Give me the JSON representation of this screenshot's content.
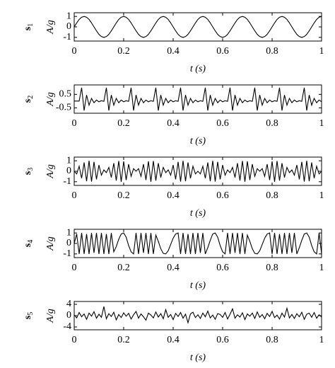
{
  "chart_data": [
    {
      "type": "line",
      "signal_label": "s",
      "signal_subscript": "1",
      "ylabel": "A/g",
      "xlabel": "t (s)",
      "color": "#000000",
      "xlim": [
        0,
        1
      ],
      "xticks": [
        0,
        0.2,
        0.4,
        0.6,
        0.8,
        1
      ],
      "ylim": [
        -1.35,
        1.35
      ],
      "yticks": [
        -1,
        0,
        1
      ],
      "x": [
        0,
        0.01,
        0.02,
        0.03,
        0.04,
        0.05,
        0.06,
        0.07,
        0.08,
        0.09,
        0.1,
        0.11,
        0.12,
        0.13,
        0.14,
        0.15,
        0.16,
        0.17,
        0.18,
        0.19,
        0.2,
        0.21,
        0.22,
        0.23,
        0.24,
        0.25,
        0.26,
        0.27,
        0.28,
        0.29,
        0.3,
        0.31,
        0.32,
        0.33,
        0.34,
        0.35,
        0.36,
        0.37,
        0.38,
        0.39,
        0.4,
        0.41,
        0.42,
        0.43,
        0.44,
        0.45,
        0.46,
        0.47,
        0.48,
        0.49,
        0.5,
        0.51,
        0.52,
        0.53,
        0.54,
        0.55,
        0.56,
        0.57,
        0.58,
        0.59,
        0.6,
        0.61,
        0.62,
        0.63,
        0.64,
        0.65,
        0.66,
        0.67,
        0.68,
        0.69,
        0.7,
        0.71,
        0.72,
        0.73,
        0.74,
        0.75,
        0.76,
        0.77,
        0.78,
        0.79,
        0.8,
        0.81,
        0.82,
        0.83,
        0.84,
        0.85,
        0.86,
        0.87,
        0.88,
        0.89,
        0.9,
        0.91,
        0.92,
        0.93,
        0.94,
        0.95,
        0.96,
        0.97,
        0.98,
        0.99,
        1
      ],
      "values": [
        0,
        0.38,
        0.71,
        0.92,
        1,
        0.92,
        0.71,
        0.38,
        0,
        -0.38,
        -0.71,
        -0.92,
        -1,
        -0.92,
        -0.71,
        -0.38,
        0,
        0.38,
        0.71,
        0.92,
        1,
        0.92,
        0.71,
        0.38,
        0,
        -0.38,
        -0.71,
        -0.92,
        -1,
        -0.92,
        -0.71,
        -0.38,
        0,
        0.38,
        0.71,
        0.92,
        1,
        0.92,
        0.71,
        0.38,
        0,
        -0.38,
        -0.71,
        -0.92,
        -1,
        -0.92,
        -0.71,
        -0.38,
        0,
        0.38,
        0.71,
        0.92,
        1,
        0.92,
        0.71,
        0.38,
        0,
        -0.38,
        -0.71,
        -0.92,
        -1,
        -0.92,
        -0.71,
        -0.38,
        0,
        0.38,
        0.71,
        0.92,
        1,
        0.92,
        0.71,
        0.38,
        0,
        -0.38,
        -0.71,
        -0.92,
        -1,
        -0.92,
        -0.71,
        -0.38,
        0,
        0.38,
        0.71,
        0.92,
        1,
        0.92,
        0.71,
        0.38,
        0,
        -0.38,
        -0.71,
        -0.92,
        -1,
        -0.92,
        -0.71,
        -0.38,
        0,
        0.38,
        0.71,
        0.92,
        1
      ]
    },
    {
      "type": "line",
      "signal_label": "s",
      "signal_subscript": "2",
      "ylabel": "A/g",
      "xlabel": "t (s)",
      "color": "#000000",
      "xlim": [
        0,
        1
      ],
      "xticks": [
        0,
        0.2,
        0.4,
        0.6,
        0.8,
        1
      ],
      "ylim": [
        -0.9,
        1.2
      ],
      "yticks": [
        -0.5,
        0.5
      ],
      "x": [
        0,
        0.01,
        0.02,
        0.03,
        0.04,
        0.05,
        0.06,
        0.07,
        0.08,
        0.09,
        0.1,
        0.11,
        0.12,
        0.13,
        0.14,
        0.15,
        0.16,
        0.17,
        0.18,
        0.19,
        0.2,
        0.21,
        0.22,
        0.23,
        0.24,
        0.25,
        0.26,
        0.27,
        0.28,
        0.29,
        0.3,
        0.31,
        0.32,
        0.33,
        0.34,
        0.35,
        0.36,
        0.37,
        0.38,
        0.39,
        0.4,
        0.41,
        0.42,
        0.43,
        0.44,
        0.45,
        0.46,
        0.47,
        0.48,
        0.49,
        0.5,
        0.51,
        0.52,
        0.53,
        0.54,
        0.55,
        0.56,
        0.57,
        0.58,
        0.59,
        0.6,
        0.61,
        0.62,
        0.63,
        0.64,
        0.65,
        0.66,
        0.67,
        0.68,
        0.69,
        0.7,
        0.71,
        0.72,
        0.73,
        0.74,
        0.75,
        0.76,
        0.77,
        0.78,
        0.79,
        0.8,
        0.81,
        0.82,
        0.83,
        0.84,
        0.85,
        0.86,
        0.87,
        0.88,
        0.89,
        0.9,
        0.91,
        0.92,
        0.93,
        0.94,
        0.95,
        0.96,
        0.97,
        0.98,
        0.99,
        1
      ],
      "values": [
        0,
        0,
        0,
        1,
        -0.7,
        0.45,
        -0.3,
        0.2,
        -0.12,
        0.08,
        -0.05,
        0.03,
        -0.02,
        1,
        -0.7,
        0.45,
        -0.3,
        0.2,
        -0.12,
        0.08,
        -0.05,
        0.03,
        -0.02,
        1,
        -0.7,
        0.45,
        -0.3,
        0.2,
        -0.12,
        0.08,
        -0.05,
        0.03,
        -0.02,
        1,
        -0.7,
        0.45,
        -0.3,
        0.2,
        -0.12,
        0.08,
        -0.05,
        0.03,
        -0.02,
        1,
        -0.7,
        0.45,
        -0.3,
        0.2,
        -0.12,
        0.08,
        -0.05,
        0.03,
        -0.02,
        1,
        -0.7,
        0.45,
        -0.3,
        0.2,
        -0.12,
        0.08,
        -0.05,
        0.03,
        -0.02,
        1,
        -0.7,
        0.45,
        -0.3,
        0.2,
        -0.12,
        0.08,
        -0.05,
        0.03,
        -0.02,
        1,
        -0.7,
        0.45,
        -0.3,
        0.2,
        -0.12,
        0.08,
        -0.05,
        0.03,
        -0.02,
        1,
        -0.7,
        0.45,
        -0.3,
        0.2,
        -0.12,
        0.08,
        -0.05,
        0.03,
        -0.02,
        1,
        -0.7,
        0.45,
        -0.3,
        0.2,
        -0.12,
        0.08,
        -0.05
      ]
    },
    {
      "type": "line",
      "signal_label": "s",
      "signal_subscript": "3",
      "ylabel": "A/g",
      "xlabel": "t (s)",
      "color": "#000000",
      "xlim": [
        0,
        1
      ],
      "xticks": [
        0,
        0.2,
        0.4,
        0.6,
        0.8,
        1
      ],
      "ylim": [
        -1.35,
        1.35
      ],
      "yticks": [
        -1,
        0,
        1
      ],
      "x": [
        0,
        0.01,
        0.02,
        0.03,
        0.04,
        0.05,
        0.06,
        0.07,
        0.08,
        0.09,
        0.1,
        0.11,
        0.12,
        0.13,
        0.14,
        0.15,
        0.16,
        0.17,
        0.18,
        0.19,
        0.2,
        0.21,
        0.22,
        0.23,
        0.24,
        0.25,
        0.26,
        0.27,
        0.28,
        0.29,
        0.3,
        0.31,
        0.32,
        0.33,
        0.34,
        0.35,
        0.36,
        0.37,
        0.38,
        0.39,
        0.4,
        0.41,
        0.42,
        0.43,
        0.44,
        0.45,
        0.46,
        0.47,
        0.48,
        0.49,
        0.5,
        0.51,
        0.52,
        0.53,
        0.54,
        0.55,
        0.56,
        0.57,
        0.58,
        0.59,
        0.6,
        0.61,
        0.62,
        0.63,
        0.64,
        0.65,
        0.66,
        0.67,
        0.68,
        0.69,
        0.7,
        0.71,
        0.72,
        0.73,
        0.74,
        0.75,
        0.76,
        0.77,
        0.78,
        0.79,
        0.8,
        0.81,
        0.82,
        0.83,
        0.84,
        0.85,
        0.86,
        0.87,
        0.88,
        0.89,
        0.9,
        0.91,
        0.92,
        0.93,
        0.94,
        0.95,
        0.96,
        0.97,
        0.98,
        0.99,
        1
      ],
      "values": [
        0,
        -0.25,
        0.48,
        -0.68,
        0.84,
        -0.95,
        1,
        -0.98,
        0.9,
        -0.77,
        0.59,
        -0.37,
        0.13,
        -0.13,
        0.37,
        -0.59,
        0.77,
        -0.9,
        0.98,
        -1,
        0.95,
        -0.84,
        0.68,
        -0.48,
        0.25,
        0,
        0.25,
        -0.48,
        0.68,
        -0.84,
        0.95,
        -1,
        0.98,
        -0.9,
        0.77,
        -0.59,
        0.37,
        -0.13,
        0.13,
        -0.37,
        0.59,
        -0.77,
        0.9,
        -0.98,
        1,
        -0.95,
        0.84,
        -0.68,
        0.48,
        -0.25,
        0,
        -0.25,
        0.48,
        -0.68,
        0.84,
        -0.95,
        1,
        -0.98,
        0.9,
        -0.77,
        0.59,
        -0.37,
        0.13,
        -0.13,
        0.37,
        -0.59,
        0.77,
        -0.9,
        0.98,
        -1,
        0.95,
        -0.84,
        0.68,
        -0.48,
        0.25,
        0,
        0.25,
        -0.48,
        0.68,
        -0.84,
        0.95,
        -1,
        0.98,
        -0.9,
        0.77,
        -0.59,
        0.37,
        -0.13,
        0.13,
        -0.37,
        0.59,
        -0.77,
        0.9,
        -0.98,
        1,
        -0.95,
        0.84,
        -0.68,
        0.48,
        -0.25,
        0
      ]
    },
    {
      "type": "line",
      "signal_label": "s",
      "signal_subscript": "4",
      "ylabel": "A/g",
      "xlabel": "t (s)",
      "color": "#000000",
      "xlim": [
        0,
        1
      ],
      "xticks": [
        0,
        0.2,
        0.4,
        0.6,
        0.8,
        1
      ],
      "ylim": [
        -1.35,
        1.35
      ],
      "yticks": [
        -1,
        0,
        1
      ],
      "x": [
        0,
        0.01,
        0.02,
        0.03,
        0.04,
        0.05,
        0.06,
        0.07,
        0.08,
        0.09,
        0.1,
        0.11,
        0.12,
        0.13,
        0.14,
        0.15,
        0.16,
        0.17,
        0.18,
        0.19,
        0.2,
        0.21,
        0.22,
        0.23,
        0.24,
        0.25,
        0.26,
        0.27,
        0.28,
        0.29,
        0.3,
        0.31,
        0.32,
        0.33,
        0.34,
        0.35,
        0.36,
        0.37,
        0.38,
        0.39,
        0.4,
        0.41,
        0.42,
        0.43,
        0.44,
        0.45,
        0.46,
        0.47,
        0.48,
        0.49,
        0.5,
        0.51,
        0.52,
        0.53,
        0.54,
        0.55,
        0.56,
        0.57,
        0.58,
        0.59,
        0.6,
        0.61,
        0.62,
        0.63,
        0.64,
        0.65,
        0.66,
        0.67,
        0.68,
        0.69,
        0.7,
        0.71,
        0.72,
        0.73,
        0.74,
        0.75,
        0.76,
        0.77,
        0.78,
        0.79,
        0.8,
        0.81,
        0.82,
        0.83,
        0.84,
        0.85,
        0.86,
        0.87,
        0.88,
        0.89,
        0.9,
        0.91,
        0.92,
        0.93,
        0.94,
        0.95,
        0.96,
        0.97,
        0.98,
        0.99,
        1
      ],
      "values": [
        0,
        0.9,
        -1,
        1,
        -1,
        0.9,
        -1,
        1,
        -0.9,
        1,
        -1,
        1,
        -1,
        0.9,
        -1,
        1,
        -0.8,
        -0.3,
        0.4,
        0.9,
        1,
        0.6,
        -0.2,
        -0.8,
        -1,
        1,
        -1,
        1,
        -0.9,
        1,
        -1,
        1,
        -1,
        0.8,
        0.2,
        -0.5,
        -0.95,
        -1,
        -0.7,
        -0.1,
        0.5,
        0.9,
        1,
        -1,
        1,
        -1,
        0.9,
        -1,
        1,
        -1,
        1,
        -0.9,
        1,
        -1,
        -0.4,
        0.3,
        0.9,
        1,
        0.6,
        -0.2,
        -0.8,
        -1,
        1,
        -1,
        1,
        -0.9,
        1,
        -1,
        1,
        -1,
        0.8,
        0.2,
        -0.5,
        -0.95,
        -1,
        -0.7,
        -0.1,
        0.5,
        0.9,
        1,
        -1,
        1,
        -1,
        0.9,
        -1,
        1,
        -1,
        1,
        -0.9,
        1,
        -1,
        -0.4,
        0.3,
        0.9,
        1,
        0.6,
        -0.2,
        -0.8,
        -1,
        1,
        -1
      ]
    },
    {
      "type": "line",
      "signal_label": "s",
      "signal_subscript": "5",
      "ylabel": "A/g",
      "xlabel": "t (s)",
      "color": "#000000",
      "xlim": [
        0,
        1
      ],
      "xticks": [
        0,
        0.2,
        0.4,
        0.6,
        0.8,
        1
      ],
      "ylim": [
        -5,
        5
      ],
      "yticks": [
        -4,
        0,
        4
      ],
      "x": [
        0,
        0.01,
        0.02,
        0.03,
        0.04,
        0.05,
        0.06,
        0.07,
        0.08,
        0.09,
        0.1,
        0.11,
        0.12,
        0.13,
        0.14,
        0.15,
        0.16,
        0.17,
        0.18,
        0.19,
        0.2,
        0.21,
        0.22,
        0.23,
        0.24,
        0.25,
        0.26,
        0.27,
        0.28,
        0.29,
        0.3,
        0.31,
        0.32,
        0.33,
        0.34,
        0.35,
        0.36,
        0.37,
        0.38,
        0.39,
        0.4,
        0.41,
        0.42,
        0.43,
        0.44,
        0.45,
        0.46,
        0.47,
        0.48,
        0.49,
        0.5,
        0.51,
        0.52,
        0.53,
        0.54,
        0.55,
        0.56,
        0.57,
        0.58,
        0.59,
        0.6,
        0.61,
        0.62,
        0.63,
        0.64,
        0.65,
        0.66,
        0.67,
        0.68,
        0.69,
        0.7,
        0.71,
        0.72,
        0.73,
        0.74,
        0.75,
        0.76,
        0.77,
        0.78,
        0.79,
        0.8,
        0.81,
        0.82,
        0.83,
        0.84,
        0.85,
        0.86,
        0.87,
        0.88,
        0.89,
        0.9,
        0.91,
        0.92,
        0.93,
        0.94,
        0.95,
        0.96,
        0.97,
        0.98,
        0.99,
        1
      ],
      "values": [
        0.3,
        -0.8,
        1.1,
        -0.4,
        0.6,
        -1.3,
        0.9,
        -0.2,
        1.4,
        -0.9,
        0.5,
        -0.6,
        3.2,
        -1.1,
        0.7,
        -0.3,
        1.2,
        -1.5,
        0.4,
        -0.7,
        1,
        -0.2,
        0.8,
        -1.2,
        0.3,
        1.5,
        -0.9,
        0.6,
        -0.4,
        -1.6,
        0.9,
        0.2,
        -0.8,
        1.3,
        -0.5,
        0.7,
        -1.1,
        2.1,
        -0.6,
        0.4,
        -1.4,
        0.8,
        -0.3,
        1.1,
        -0.9,
        0.5,
        -2.5,
        0.6,
        1.2,
        -0.7,
        0.3,
        -1,
        0.9,
        -0.4,
        1.6,
        -0.8,
        0.2,
        -1.3,
        0.7,
        0.4,
        -0.6,
        1.1,
        -1.2,
        0.5,
        2.4,
        -0.9,
        0.3,
        -0.5,
        1,
        -1.4,
        0.6,
        -0.2,
        0.9,
        -1,
        1.3,
        -0.6,
        0.4,
        -1.1,
        0.8,
        -0.3,
        1.5,
        -0.7,
        0.2,
        -1.2,
        0.9,
        -0.5,
        2.6,
        -0.8,
        0.4,
        -1,
        0.7,
        -0.4,
        1.2,
        -1.3,
        0.5,
        0.9,
        -0.6,
        1.1,
        -0.9,
        0.3,
        -0.5
      ]
    }
  ]
}
